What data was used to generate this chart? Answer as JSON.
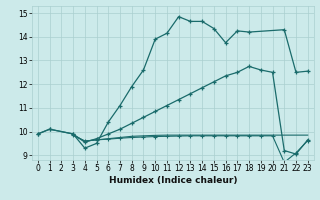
{
  "xlabel": "Humidex (Indice chaleur)",
  "bg_color": "#cceaea",
  "grid_color": "#aacfcf",
  "line_color": "#1a6b6b",
  "xlim": [
    -0.5,
    23.5
  ],
  "ylim": [
    8.8,
    15.3
  ],
  "xticks": [
    0,
    1,
    2,
    3,
    4,
    5,
    6,
    7,
    8,
    9,
    10,
    11,
    12,
    13,
    14,
    15,
    16,
    17,
    18,
    19,
    20,
    21,
    22,
    23
  ],
  "yticks": [
    9,
    10,
    11,
    12,
    13,
    14,
    15
  ],
  "series1_x": [
    0,
    1,
    3,
    4,
    5,
    6,
    7,
    8,
    9,
    10,
    11,
    12,
    13,
    14,
    15,
    16,
    17,
    18,
    21,
    22,
    23
  ],
  "series1_y": [
    9.9,
    10.1,
    9.9,
    9.3,
    9.5,
    10.4,
    11.1,
    11.9,
    12.6,
    13.9,
    14.15,
    14.85,
    14.65,
    14.65,
    14.35,
    13.75,
    14.25,
    14.2,
    14.3,
    12.5,
    12.55
  ],
  "series2_x": [
    0,
    1,
    3,
    4,
    5,
    6,
    7,
    8,
    9,
    10,
    11,
    12,
    13,
    14,
    15,
    16,
    17,
    18,
    19,
    20,
    21,
    22,
    23
  ],
  "series2_y": [
    9.9,
    10.1,
    9.9,
    9.55,
    9.7,
    9.9,
    10.1,
    10.35,
    10.6,
    10.85,
    11.1,
    11.35,
    11.6,
    11.85,
    12.1,
    12.35,
    12.5,
    12.75,
    12.6,
    12.5,
    9.2,
    9.05,
    9.65
  ],
  "series3_x": [
    3,
    4,
    5,
    6,
    7,
    8,
    9,
    10,
    11,
    12,
    13,
    14,
    15,
    16,
    17,
    18,
    19,
    20,
    21,
    22,
    23
  ],
  "series3_y": [
    9.85,
    9.6,
    9.65,
    9.7,
    9.75,
    9.8,
    9.82,
    9.84,
    9.85,
    9.85,
    9.85,
    9.85,
    9.85,
    9.85,
    9.85,
    9.85,
    9.85,
    9.85,
    9.85,
    9.85,
    9.85
  ],
  "series4_x": [
    3,
    4,
    5,
    6,
    7,
    8,
    9,
    10,
    11,
    12,
    13,
    14,
    15,
    16,
    17,
    18,
    19,
    20,
    21,
    22,
    23
  ],
  "series4_y": [
    9.85,
    9.6,
    9.65,
    9.68,
    9.72,
    9.75,
    9.77,
    9.79,
    9.8,
    9.81,
    9.82,
    9.82,
    9.82,
    9.82,
    9.82,
    9.82,
    9.82,
    9.82,
    8.7,
    9.1,
    9.62
  ]
}
